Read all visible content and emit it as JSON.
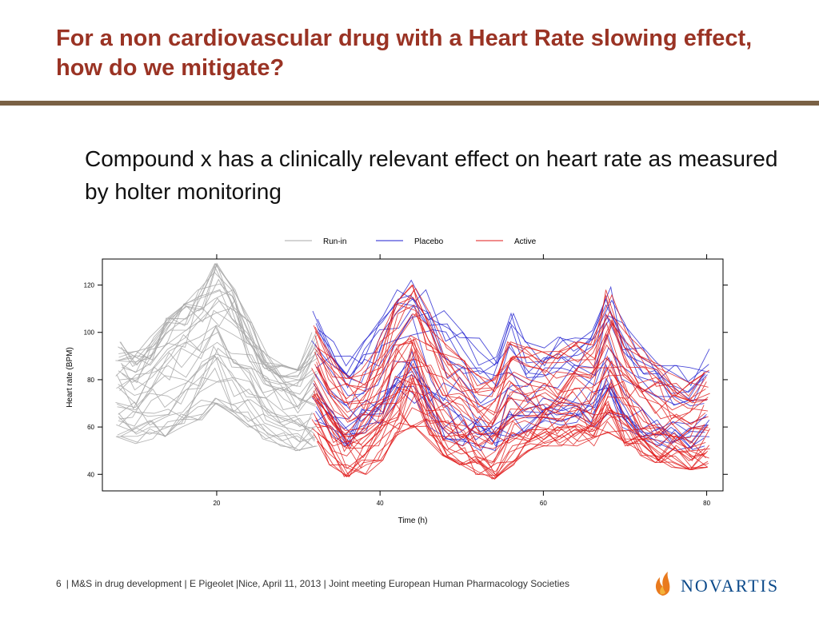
{
  "slide": {
    "title": "For a non cardiovascular drug with a Heart Rate slowing effect, how do we mitigate?",
    "bullet": "Compound x has a clinically relevant effect on heart rate as measured by holter monitoring"
  },
  "footer": {
    "page_number": "6",
    "text": "| M&S in drug development | E Pigeolet |Nice, April 11, 2013 | Joint meeting European Human Pharmacology Societies",
    "brand": "NOVARTIS",
    "brand_logo_icon": "flame-logo-icon"
  },
  "colors": {
    "title": "#9a3324",
    "rule": "#7a6145",
    "run_in": "#a8a8a8",
    "placebo": "#1f1fd0",
    "active": "#e01818"
  },
  "chart_data": {
    "type": "line",
    "title": "",
    "xlabel": "Time (h)",
    "ylabel": "Heart rate (BPM)",
    "xlim": [
      6,
      82
    ],
    "ylim": [
      33,
      131
    ],
    "x_ticks": [
      20,
      40,
      60,
      80
    ],
    "y_ticks": [
      40,
      60,
      80,
      100,
      120
    ],
    "grid": false,
    "legend": {
      "position": "top",
      "entries": [
        {
          "label": "Run-in",
          "color": "#a8a8a8"
        },
        {
          "label": "Placebo",
          "color": "#1f1fd0"
        },
        {
          "label": "Active",
          "color": "#e01818"
        }
      ]
    },
    "series": [
      {
        "group": "Run-in",
        "x": [
          8,
          10,
          12,
          14,
          16,
          18,
          20,
          22,
          24,
          26,
          28,
          30,
          32
        ],
        "y_min": [
          56,
          53,
          55,
          56,
          60,
          63,
          70,
          66,
          60,
          55,
          52,
          50,
          52
        ],
        "y_mean": [
          70,
          68,
          72,
          76,
          80,
          84,
          90,
          86,
          78,
          70,
          66,
          64,
          66
        ],
        "y_max": [
          96,
          92,
          98,
          106,
          112,
          118,
          129,
          118,
          104,
          92,
          86,
          84,
          100
        ]
      },
      {
        "group": "Placebo",
        "x": [
          32,
          34,
          36,
          38,
          40,
          42,
          44,
          46,
          48,
          50,
          52,
          54,
          56,
          58,
          60,
          62,
          64,
          66,
          68,
          70,
          72,
          74,
          76,
          78,
          80
        ],
        "y_min": [
          62,
          56,
          52,
          54,
          60,
          66,
          70,
          60,
          55,
          52,
          50,
          50,
          56,
          58,
          58,
          60,
          62,
          60,
          66,
          60,
          55,
          52,
          50,
          50,
          52
        ],
        "y_mean": [
          75,
          68,
          63,
          66,
          74,
          84,
          90,
          76,
          68,
          64,
          62,
          62,
          70,
          68,
          68,
          70,
          72,
          72,
          82,
          72,
          66,
          62,
          60,
          60,
          64
        ],
        "y_max": [
          109,
          96,
          90,
          96,
          108,
          118,
          122,
          118,
          110,
          100,
          98,
          94,
          108,
          96,
          95,
          98,
          100,
          104,
          120,
          104,
          94,
          90,
          86,
          86,
          93
        ]
      },
      {
        "group": "Active",
        "x": [
          32,
          34,
          36,
          38,
          40,
          42,
          44,
          46,
          48,
          50,
          52,
          54,
          56,
          58,
          60,
          62,
          64,
          66,
          68,
          70,
          72,
          74,
          76,
          78,
          80
        ],
        "y_min": [
          54,
          44,
          39,
          40,
          46,
          56,
          60,
          54,
          48,
          44,
          40,
          38,
          44,
          50,
          52,
          52,
          52,
          52,
          58,
          52,
          48,
          45,
          43,
          42,
          43
        ],
        "y_mean": [
          72,
          58,
          52,
          54,
          62,
          78,
          86,
          70,
          60,
          56,
          53,
          52,
          60,
          63,
          64,
          64,
          66,
          66,
          76,
          66,
          58,
          55,
          53,
          52,
          56
        ],
        "y_max": [
          104,
          92,
          82,
          84,
          96,
          112,
          120,
          108,
          96,
          88,
          82,
          80,
          96,
          94,
          92,
          92,
          96,
          96,
          118,
          100,
          92,
          86,
          82,
          80,
          84
        ]
      }
    ]
  }
}
